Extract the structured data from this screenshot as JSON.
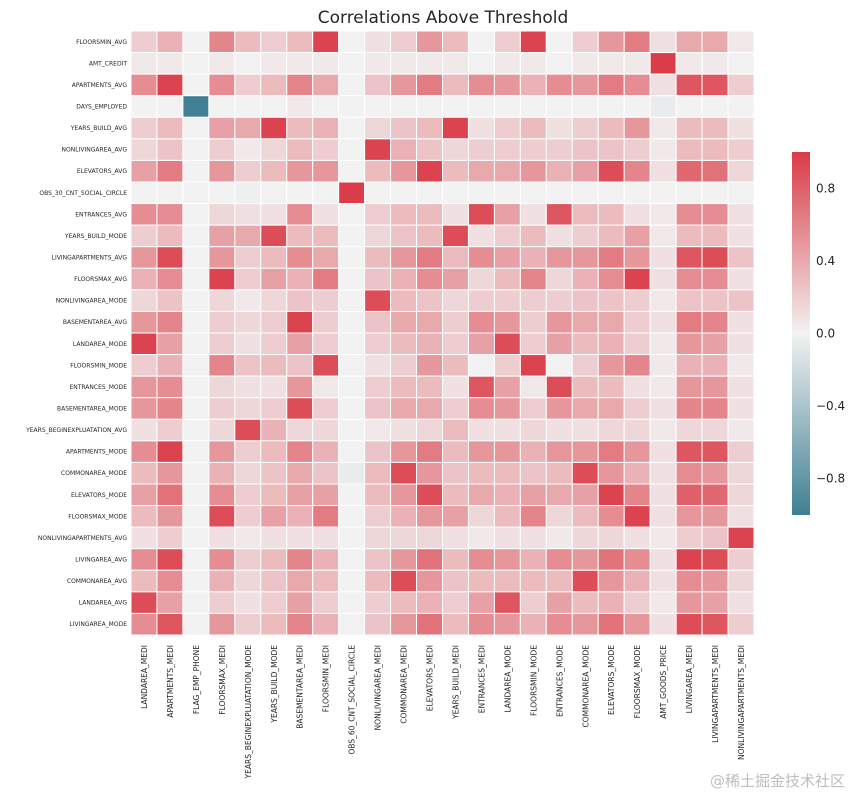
{
  "chart_data": {
    "type": "heatmap",
    "title": "Correlations Above Threshold",
    "rows": [
      "FLOORSMIN_AVG",
      "AMT_CREDIT",
      "APARTMENTS_AVG",
      "DAYS_EMPLOYED",
      "YEARS_BUILD_AVG",
      "NONLIVINGAREA_AVG",
      "ELEVATORS_AVG",
      "OBS_30_CNT_SOCIAL_CIRCLE",
      "ENTRANCES_AVG",
      "YEARS_BUILD_MODE",
      "LIVINGAPARTMENTS_AVG",
      "FLOORSMAX_AVG",
      "NONLIVINGAREA_MODE",
      "BASEMENTAREA_AVG",
      "LANDAREA_MODE",
      "FLOORSMIN_MODE",
      "ENTRANCES_MODE",
      "BASEMENTAREA_MODE",
      "YEARS_BEGINEXPLUATATION_AVG",
      "APARTMENTS_MODE",
      "COMMONAREA_MODE",
      "ELEVATORS_MODE",
      "FLOORSMAX_MODE",
      "NONLIVINGAPARTMENTS_AVG",
      "LIVINGAREA_AVG",
      "COMMONAREA_AVG",
      "LANDAREA_AVG",
      "LIVINGAREA_MODE"
    ],
    "columns": [
      "LANDAREA_MEDI",
      "APARTMENTS_MEDI",
      "FLAG_EMP_PHONE",
      "FLOORSMAX_MEDI",
      "YEARS_BEGINEXPLUATATION_MODE",
      "YEARS_BUILD_MODE",
      "BASEMENTAREA_MEDI",
      "FLOORSMIN_MEDI",
      "OBS_60_CNT_SOCIAL_CIRCLE",
      "NONLIVINGAREA_MEDI",
      "COMMONAREA_MEDI",
      "ELEVATORS_MEDI",
      "YEARS_BUILD_MEDI",
      "ENTRANCES_MEDI",
      "LANDAREA_MODE",
      "FLOORSMIN_MODE",
      "ENTRANCES_MODE",
      "COMMONAREA_MODE",
      "ELEVATORS_MODE",
      "FLOORSMAX_MODE",
      "AMT_GOODS_PRICE",
      "LIVINGAREA_MEDI",
      "LIVINGAPARTMENTS_MEDI",
      "NONLIVINGAPARTMENTS_MEDI"
    ],
    "values": [
      [
        0.2,
        0.35,
        0,
        0.6,
        0.3,
        0.2,
        0.3,
        0.95,
        0,
        0.1,
        0.2,
        0.5,
        0.3,
        0,
        0.2,
        0.95,
        0,
        0.2,
        0.5,
        0.65,
        0.1,
        0.4,
        0.4,
        0.05
      ],
      [
        0.05,
        0.05,
        0,
        0.05,
        0,
        0.05,
        0.05,
        0.05,
        0,
        0.05,
        0.05,
        0.05,
        0.05,
        0,
        0.05,
        0.05,
        0,
        0.05,
        0.05,
        0.05,
        0.99,
        0.05,
        0.05,
        0
      ],
      [
        0.55,
        0.95,
        0,
        0.55,
        0.2,
        0.3,
        0.6,
        0.4,
        0,
        0.25,
        0.5,
        0.65,
        0.3,
        0.55,
        0.5,
        0.35,
        0.55,
        0.5,
        0.65,
        0.55,
        0.1,
        0.85,
        0.85,
        0.2
      ],
      [
        0,
        0,
        -0.99,
        0,
        0,
        0,
        0.05,
        0,
        0,
        0,
        0,
        0,
        0,
        0,
        0,
        0,
        0,
        0,
        0,
        0,
        -0.05,
        0,
        0,
        0
      ],
      [
        0.2,
        0.3,
        0,
        0.45,
        0.4,
        0.95,
        0.3,
        0.35,
        0,
        0.15,
        0.25,
        0.3,
        0.95,
        0.1,
        0.2,
        0.3,
        0.1,
        0.2,
        0.3,
        0.5,
        0.05,
        0.3,
        0.3,
        0.1
      ],
      [
        0.15,
        0.25,
        0,
        0.2,
        0.05,
        0.15,
        0.3,
        0.2,
        0,
        0.95,
        0.35,
        0.25,
        0.15,
        0.2,
        0.2,
        0.2,
        0.2,
        0.25,
        0.25,
        0.2,
        0.05,
        0.3,
        0.3,
        0.2
      ],
      [
        0.45,
        0.65,
        0,
        0.5,
        0.2,
        0.3,
        0.5,
        0.5,
        0,
        0.3,
        0.5,
        0.95,
        0.3,
        0.4,
        0.4,
        0.5,
        0.35,
        0.45,
        0.9,
        0.6,
        0.1,
        0.75,
        0.7,
        0.15
      ],
      [
        0,
        0,
        0,
        0,
        -0.02,
        0,
        0,
        0,
        0.99,
        0,
        0,
        0,
        0,
        0,
        0,
        0,
        0,
        0,
        0,
        0,
        0,
        0,
        0,
        0
      ],
      [
        0.55,
        0.55,
        0,
        0.15,
        0.1,
        0.1,
        0.55,
        0.1,
        0,
        0.2,
        0.3,
        0.3,
        0.1,
        0.9,
        0.45,
        0.1,
        0.85,
        0.3,
        0.3,
        0.1,
        0.05,
        0.55,
        0.55,
        0.1
      ],
      [
        0.2,
        0.3,
        0,
        0.45,
        0.4,
        0.9,
        0.3,
        0.3,
        0,
        0.15,
        0.25,
        0.3,
        0.9,
        0.1,
        0.2,
        0.3,
        0.1,
        0.2,
        0.3,
        0.45,
        0.05,
        0.3,
        0.3,
        0.1
      ],
      [
        0.5,
        0.9,
        0,
        0.5,
        0.2,
        0.3,
        0.55,
        0.4,
        0,
        0.3,
        0.5,
        0.65,
        0.3,
        0.55,
        0.45,
        0.35,
        0.5,
        0.5,
        0.65,
        0.5,
        0.1,
        0.85,
        0.9,
        0.25
      ],
      [
        0.35,
        0.55,
        0,
        0.95,
        0.2,
        0.45,
        0.35,
        0.65,
        0,
        0.25,
        0.35,
        0.55,
        0.45,
        0.15,
        0.3,
        0.6,
        0.15,
        0.35,
        0.55,
        0.95,
        0.1,
        0.55,
        0.55,
        0.1
      ],
      [
        0.15,
        0.25,
        0,
        0.15,
        0.05,
        0.15,
        0.25,
        0.2,
        0,
        0.9,
        0.3,
        0.25,
        0.15,
        0.2,
        0.2,
        0.2,
        0.2,
        0.25,
        0.25,
        0.2,
        0.05,
        0.25,
        0.25,
        0.25
      ],
      [
        0.5,
        0.6,
        0,
        0.2,
        0.15,
        0.2,
        0.95,
        0.2,
        0,
        0.25,
        0.4,
        0.4,
        0.2,
        0.55,
        0.5,
        0.2,
        0.5,
        0.4,
        0.4,
        0.2,
        0.1,
        0.65,
        0.6,
        0.1
      ],
      [
        0.95,
        0.45,
        0,
        0.2,
        0.1,
        0.2,
        0.45,
        0.2,
        0,
        0.2,
        0.3,
        0.35,
        0.2,
        0.45,
        0.9,
        0.2,
        0.45,
        0.3,
        0.35,
        0.2,
        0.05,
        0.5,
        0.45,
        0.1
      ],
      [
        0.2,
        0.35,
        0,
        0.6,
        0.25,
        0.3,
        0.25,
        0.9,
        0,
        0.1,
        0.2,
        0.5,
        0.3,
        0,
        0.2,
        0.95,
        0,
        0.2,
        0.5,
        0.6,
        0.05,
        0.35,
        0.35,
        0.05
      ],
      [
        0.5,
        0.55,
        0,
        0.15,
        0.1,
        0.1,
        0.5,
        0.05,
        0,
        0.2,
        0.3,
        0.3,
        0.1,
        0.85,
        0.45,
        0.05,
        0.9,
        0.3,
        0.3,
        0.1,
        0.05,
        0.5,
        0.5,
        0.1
      ],
      [
        0.5,
        0.6,
        0,
        0.2,
        0.15,
        0.2,
        0.9,
        0.2,
        0,
        0.25,
        0.4,
        0.4,
        0.2,
        0.55,
        0.5,
        0.2,
        0.5,
        0.4,
        0.4,
        0.2,
        0.1,
        0.6,
        0.6,
        0.1
      ],
      [
        0.1,
        0.2,
        0,
        0.15,
        0.9,
        0.35,
        0.15,
        0.15,
        0,
        0.05,
        0.1,
        0.15,
        0.3,
        0.1,
        0.1,
        0.15,
        0.1,
        0.1,
        0.15,
        0.15,
        0.05,
        0.15,
        0.15,
        0.05
      ],
      [
        0.55,
        0.95,
        0,
        0.5,
        0.2,
        0.3,
        0.6,
        0.35,
        0,
        0.25,
        0.5,
        0.65,
        0.3,
        0.5,
        0.5,
        0.35,
        0.5,
        0.5,
        0.65,
        0.5,
        0.1,
        0.85,
        0.85,
        0.2
      ],
      [
        0.3,
        0.5,
        0,
        0.35,
        0.15,
        0.25,
        0.4,
        0.25,
        -0.05,
        0.3,
        0.9,
        0.5,
        0.25,
        0.3,
        0.3,
        0.25,
        0.3,
        0.9,
        0.5,
        0.35,
        0.1,
        0.55,
        0.5,
        0.15
      ],
      [
        0.45,
        0.7,
        0,
        0.55,
        0.2,
        0.3,
        0.45,
        0.45,
        0,
        0.3,
        0.5,
        0.9,
        0.3,
        0.4,
        0.35,
        0.45,
        0.4,
        0.45,
        0.95,
        0.6,
        0.1,
        0.8,
        0.75,
        0.15
      ],
      [
        0.3,
        0.5,
        0,
        0.9,
        0.2,
        0.45,
        0.35,
        0.65,
        0,
        0.2,
        0.35,
        0.5,
        0.45,
        0.15,
        0.3,
        0.6,
        0.15,
        0.3,
        0.55,
        0.95,
        0.1,
        0.5,
        0.5,
        0.1
      ],
      [
        0.1,
        0.2,
        0,
        0.1,
        0.05,
        0.1,
        0.1,
        0.1,
        0,
        0.15,
        0.15,
        0.15,
        0.1,
        0.05,
        0.1,
        0.1,
        0.05,
        0.15,
        0.15,
        0.1,
        0.05,
        0.2,
        0.25,
        0.95
      ],
      [
        0.55,
        0.9,
        0,
        0.55,
        0.2,
        0.3,
        0.6,
        0.35,
        0,
        0.25,
        0.5,
        0.7,
        0.3,
        0.55,
        0.5,
        0.35,
        0.55,
        0.5,
        0.7,
        0.55,
        0.1,
        0.95,
        0.9,
        0.2
      ],
      [
        0.3,
        0.55,
        0,
        0.35,
        0.15,
        0.25,
        0.4,
        0.3,
        0,
        0.3,
        0.9,
        0.5,
        0.25,
        0.3,
        0.3,
        0.3,
        0.3,
        0.9,
        0.5,
        0.35,
        0.1,
        0.55,
        0.5,
        0.15
      ],
      [
        0.9,
        0.45,
        0,
        0.2,
        0.1,
        0.2,
        0.45,
        0.2,
        0,
        0.2,
        0.3,
        0.35,
        0.2,
        0.45,
        0.85,
        0.2,
        0.45,
        0.3,
        0.35,
        0.2,
        0.05,
        0.5,
        0.45,
        0.1
      ],
      [
        0.55,
        0.85,
        0,
        0.5,
        0.2,
        0.3,
        0.6,
        0.35,
        0,
        0.25,
        0.5,
        0.7,
        0.3,
        0.55,
        0.5,
        0.35,
        0.55,
        0.5,
        0.7,
        0.5,
        0.1,
        0.9,
        0.85,
        0.2
      ]
    ],
    "vmin": -1,
    "vmax": 1,
    "colorbar_ticks": [
      -0.8,
      -0.4,
      0.0,
      0.4,
      0.8
    ],
    "colors": {
      "negative": "#3f7f93",
      "neutral": "#f2f2f2",
      "positive": "#da3b46"
    },
    "grid": true
  },
  "watermark": "@稀土掘金技术社区"
}
